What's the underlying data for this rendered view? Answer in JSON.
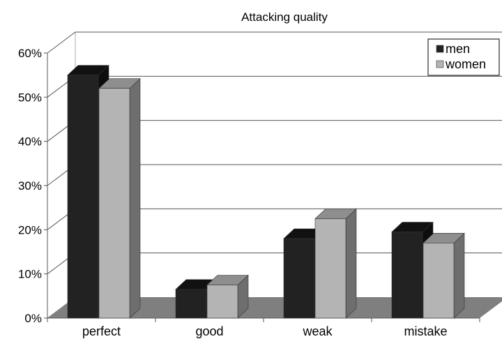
{
  "chart_data": {
    "type": "bar",
    "title": "Attacking quality",
    "categories": [
      "perfect",
      "good",
      "weak",
      "mistake"
    ],
    "series": [
      {
        "name": "men",
        "values": [
          55,
          6.5,
          18,
          19.5
        ]
      },
      {
        "name": "women",
        "values": [
          52,
          7.5,
          22.5,
          17
        ]
      }
    ],
    "ylim": [
      0,
      60
    ],
    "yticks": [
      0,
      10,
      20,
      30,
      40,
      50,
      60
    ],
    "ytick_labels": [
      "0%",
      "10%",
      "20%",
      "30%",
      "40%",
      "50%",
      "60%"
    ],
    "grid": true,
    "legend": "top-right",
    "three_d": true,
    "colors": {
      "men_front": "#222222",
      "men_top": "#111111",
      "men_side": "#0d0d0d",
      "women_front": "#b4b4b4",
      "women_top": "#8e8e8e",
      "women_side": "#6e6e6e",
      "floor": "#7f7f7f",
      "gridline": "#555555",
      "wall": "#aaaaaa"
    }
  }
}
